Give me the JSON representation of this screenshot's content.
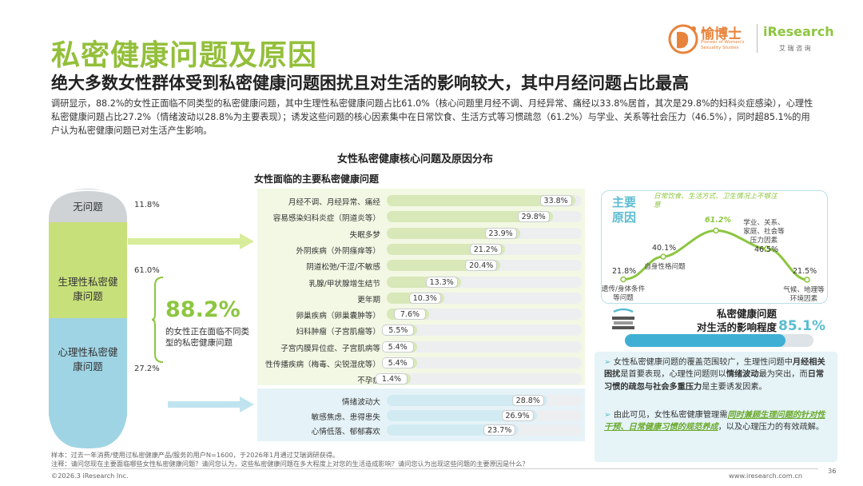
{
  "header": {
    "title": "私密健康问题及原因",
    "subtitle": "绝大多数女性群体受到私密健康问题困扰且对生活的影响较大，其中月经问题占比最高",
    "intro": "调研显示，88.2%的女性正面临不同类型的私密健康问题，其中生理性私密健康问题占比61.0%（核心问题里月经不调、月经异常、痛经以33.8%居首，其次是29.8%的妇科炎症感染），心理性私密健康问题占比27.2%（情绪波动以28.8%为主要表现）；诱发这些问题的核心因素集中在日常饮食、生活方式等习惯疏忽（61.2%）与学业、关系等社会压力（46.5%），同时超85.1%的用户认为私密健康问题已对生活产生影响。"
  },
  "logos": {
    "brand_cn": "愉博士",
    "brand_en_line1": "Pioneer of Women's",
    "brand_en_line2": "Sexuality Studies",
    "research": "iResearch",
    "research_cn": "艾 瑞 咨 询"
  },
  "chart_title": "女性私密健康核心问题及原因分布",
  "left_panel": {
    "ovals": [
      {
        "label": "无问题",
        "pct": "11.8%"
      },
      {
        "label": "生理性私密健康问题",
        "pct": "61.0%"
      },
      {
        "label": "心理性私密健康问题",
        "pct": "27.2%"
      }
    ],
    "total_pct": "88.2%",
    "total_desc": "的女性正在面临不同类型的私密健康问题"
  },
  "chart_data": {
    "type": "bar",
    "title": "女性面临的主要私密健康问题",
    "groups": [
      {
        "name": "生理性",
        "categories": [
          "月经不调、月经异常、痛经",
          "容易感染妇科炎症（阴道炎等）",
          "失眠多梦",
          "外阴疾病（外阴瘙痒等）",
          "阴道松弛/干涩/不敏感",
          "乳腺/甲状腺增生结节",
          "更年期",
          "卵巢疾病（卵巢囊肿等）",
          "妇科肿瘤（子宫肌瘤等）",
          "子宫内膜异位症、子宫肌病等",
          "性传播疾病（梅毒、尖锐湿疣等）",
          "不孕症"
        ],
        "values": [
          33.8,
          29.8,
          23.9,
          21.2,
          20.4,
          13.3,
          10.3,
          7.6,
          5.5,
          5.4,
          5.4,
          1.4
        ]
      },
      {
        "name": "心理性",
        "categories": [
          "情绪波动大",
          "敏感焦虑、患得患失",
          "心情低落、郁郁寡欢"
        ],
        "values": [
          28.8,
          26.9,
          23.7
        ]
      }
    ],
    "unit": "%",
    "xlim": [
      0,
      35
    ]
  },
  "causes": {
    "header": "主要原因",
    "note": "日常饮食、生活方式、卫生情况上不够注意",
    "points": [
      {
        "label": "遗传/身体条件等问题",
        "value": 21.8,
        "text": "21.8%"
      },
      {
        "label": "自身性格问题",
        "value": 40.1,
        "text": "40.1%"
      },
      {
        "label": "",
        "value": 61.2,
        "text": "61.2%"
      },
      {
        "label": "学业、关系、家庭、社会等压力因素",
        "value": 46.5,
        "text": "46.5%"
      },
      {
        "label": "气候、地理等环境因素",
        "value": 21.5,
        "text": "21.5%"
      }
    ]
  },
  "impact": {
    "title_line1": "私密健康问题",
    "title_line2": "对生活的影响程度",
    "value": 85.1,
    "value_text": "85.1%"
  },
  "notes": {
    "p1_a": "女性私密健康问题的覆盖范围较广，生理性问题中",
    "p1_b": "月经相关困扰",
    "p1_c": "是首要表现，心理性问题则以",
    "p1_d": "情绪波动",
    "p1_e": "最为突出，而",
    "p1_f": "日常习惯的疏忽与社会多重压力",
    "p1_g": "是主要诱发因素。",
    "p2_a": "由此可见，女性私密健康管理需",
    "p2_b": "同时兼顾生理问题的针对性干预、日常健康习惯的规范养成",
    "p2_c": "，以及心理压力的有效疏解。"
  },
  "footer": {
    "sample": "样本：过去一年消费/使用过私密健康产品/服务的用户N=1600，于2026年1月通过艾瑞调研获得。",
    "note": "注释：请问您现在主要面临哪些女性私密健康问题？请问您认为，这些私密健康问题在多大程度上对您的生活造成影响？请问您认为出现这些问题的主要原因是什么？",
    "copyright": "©2026.3 iResearch Inc.",
    "website": "www.iresearch.com.cn",
    "page": "36"
  }
}
